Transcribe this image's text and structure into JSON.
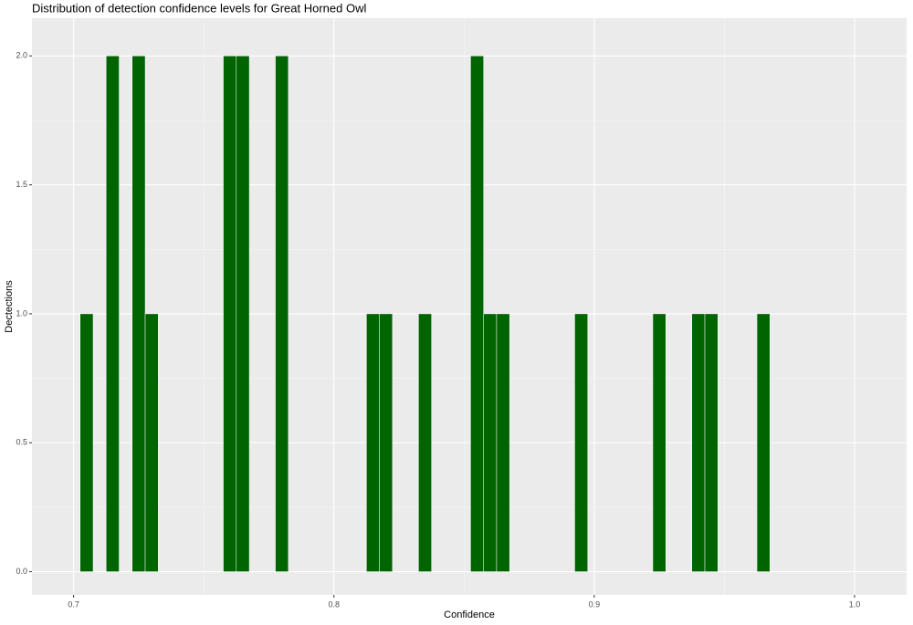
{
  "chart_data": {
    "type": "histogram",
    "title": "Distribution of detection confidence levels for Great Horned Owl",
    "x_label": "Confidence",
    "y_label": "Dectections",
    "color": "#006400",
    "bins": [
      0.7025,
      0.7075,
      0.7125,
      0.7175,
      0.7225,
      0.7275,
      0.7325,
      0.7375,
      0.7425,
      0.7475,
      0.7525,
      0.7575,
      0.7625,
      0.7675,
      0.7725,
      0.7775,
      0.7825,
      0.7875,
      0.7925,
      0.7975,
      0.8025,
      0.8075,
      0.8125,
      0.8175,
      0.8225,
      0.8275,
      0.8325,
      0.8375,
      0.8425,
      0.8475,
      0.8525,
      0.8575,
      0.8625,
      0.8675,
      0.8725,
      0.8775,
      0.8825,
      0.8875,
      0.8925,
      0.8975,
      0.9025,
      0.9075,
      0.9125,
      0.9175,
      0.9225,
      0.9275,
      0.9325,
      0.9375,
      0.9425,
      0.9475,
      0.9525,
      0.9575,
      0.9625,
      0.9675
    ],
    "values": [
      1,
      0,
      2,
      0,
      2,
      1,
      0,
      0,
      0,
      0,
      0,
      2,
      2,
      0,
      0,
      2,
      0,
      0,
      0,
      0,
      0,
      0,
      1,
      1,
      0,
      0,
      1,
      0,
      0,
      0,
      2,
      1,
      1,
      0,
      0,
      0,
      0,
      0,
      1,
      0,
      0,
      0,
      0,
      0,
      1,
      0,
      0,
      1,
      1,
      0,
      0,
      0,
      1
    ],
    "xlim": [
      0.684,
      1.02
    ],
    "ylim": [
      -0.09,
      2.146
    ],
    "xticks": [
      0.7,
      0.8,
      0.9,
      {
        "value": 1.0,
        "label": "1.0"
      }
    ],
    "yticks": [
      {
        "value": 0,
        "label": "0.0"
      },
      0.5,
      {
        "value": 1.0,
        "label": "1.0"
      },
      1.5,
      {
        "value": 2.0,
        "label": "2.0"
      }
    ],
    "grid": true
  }
}
